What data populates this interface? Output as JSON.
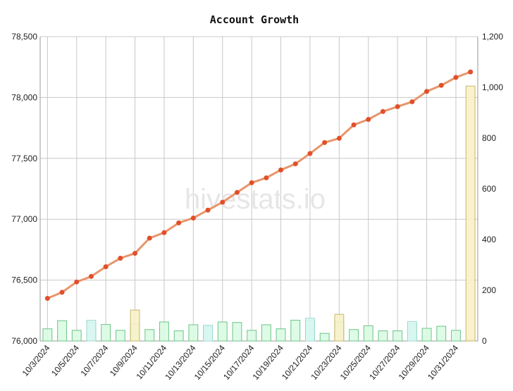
{
  "chart_data": {
    "type": "line",
    "title": "Account Growth",
    "watermark": "hivestats.io",
    "xlabel": "",
    "ylabel": "",
    "x": [
      "10/3/2024",
      "10/4/2024",
      "10/5/2024",
      "10/6/2024",
      "10/7/2024",
      "10/8/2024",
      "10/9/2024",
      "10/10/2024",
      "10/11/2024",
      "10/12/2024",
      "10/13/2024",
      "10/14/2024",
      "10/15/2024",
      "10/16/2024",
      "10/17/2024",
      "10/18/2024",
      "10/19/2024",
      "10/20/2024",
      "10/21/2024",
      "10/22/2024",
      "10/23/2024",
      "10/24/2024",
      "10/25/2024",
      "10/26/2024",
      "10/27/2024",
      "10/28/2024",
      "10/29/2024",
      "10/30/2024",
      "10/31/2024",
      "11/1/2024"
    ],
    "x_tick_labels": [
      "10/3/2024",
      "10/5/2024",
      "10/7/2024",
      "10/9/2024",
      "10/11/2024",
      "10/13/2024",
      "10/15/2024",
      "10/17/2024",
      "10/19/2024",
      "10/21/2024",
      "10/23/2024",
      "10/25/2024",
      "10/27/2024",
      "10/29/2024",
      "10/31/2024"
    ],
    "y_left": {
      "ylim": [
        76000,
        78500
      ],
      "ticks": [
        "76,000",
        "76,500",
        "77,000",
        "77,500",
        "78,000",
        "78,500"
      ]
    },
    "y_right": {
      "ylim": [
        0,
        1200
      ],
      "ticks": [
        "0",
        "200",
        "400",
        "600",
        "800",
        "1,000",
        "1,200"
      ]
    },
    "grid": true,
    "series": [
      {
        "type": "line",
        "axis": "left",
        "color": "#e8956a",
        "marker_color": "#e0502a",
        "values": [
          76350,
          76400,
          76485,
          76530,
          76610,
          76680,
          76720,
          76845,
          76890,
          76970,
          77010,
          77075,
          77140,
          77220,
          77300,
          77340,
          77405,
          77455,
          77540,
          77630,
          77665,
          77775,
          77820,
          77885,
          77925,
          77965,
          78050,
          78100,
          78165,
          78210
        ]
      },
      {
        "type": "bar",
        "axis": "right",
        "color": "#d9fbe3",
        "edge": "#6cc487",
        "values": [
          48,
          80,
          42,
          75,
          65,
          42,
          67,
          45,
          75,
          40,
          64,
          57,
          75,
          73,
          42,
          64,
          48,
          82,
          82,
          30,
          75,
          45,
          60,
          40,
          40,
          67,
          50,
          58,
          42,
          4
        ]
      },
      {
        "type": "bar",
        "axis": "right",
        "color": "#f8f1c8",
        "edge": "#c8b86a",
        "values": [
          0,
          0,
          0,
          0,
          0,
          0,
          122,
          0,
          0,
          0,
          0,
          0,
          0,
          0,
          0,
          0,
          0,
          0,
          0,
          0,
          105,
          0,
          0,
          0,
          0,
          0,
          0,
          0,
          0,
          1005
        ]
      },
      {
        "type": "bar",
        "axis": "right",
        "color": "#d8f6f2",
        "edge": "#9edbd0",
        "values": [
          0,
          0,
          0,
          82,
          0,
          0,
          0,
          0,
          0,
          0,
          0,
          62,
          0,
          0,
          0,
          0,
          0,
          0,
          90,
          0,
          0,
          0,
          0,
          0,
          0,
          77,
          0,
          0,
          0,
          0
        ]
      }
    ]
  }
}
